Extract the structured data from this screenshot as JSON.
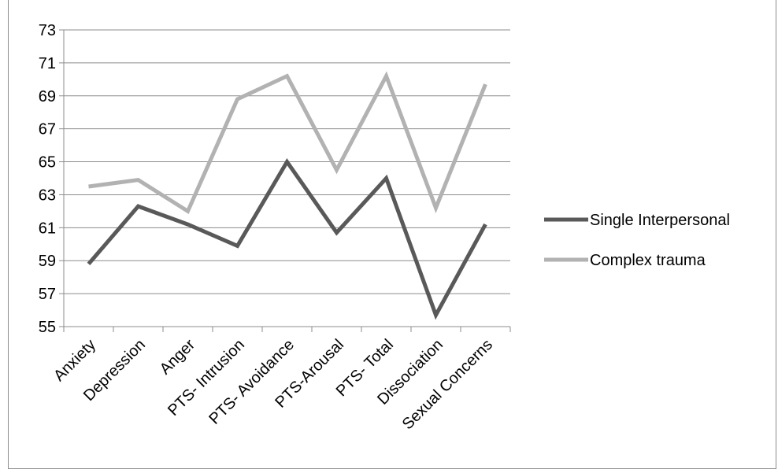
{
  "chart_data": {
    "type": "line",
    "categories": [
      "Anxiety",
      "Depression",
      "Anger",
      "PTS- Intrusion",
      "PTS- Avoidance",
      "PTS-Arousal",
      "PTS- Total",
      "Dissociation",
      "Sexual Concerns"
    ],
    "series": [
      {
        "name": "Single Interpersonal",
        "values": [
          58.8,
          62.3,
          61.2,
          59.9,
          65.0,
          60.7,
          64.0,
          55.7,
          61.2
        ],
        "color": "#595959"
      },
      {
        "name": "Complex trauma",
        "values": [
          63.5,
          63.9,
          62.0,
          68.8,
          70.2,
          64.5,
          70.2,
          62.2,
          69.7
        ],
        "color": "#b2b2b2"
      }
    ],
    "title": "",
    "xlabel": "",
    "ylabel": "",
    "ylim": [
      55,
      73
    ],
    "yticks": [
      "55",
      "57",
      "59",
      "61",
      "63",
      "65",
      "67",
      "69",
      "71",
      "73"
    ],
    "grid": true,
    "legend_position": "right"
  }
}
